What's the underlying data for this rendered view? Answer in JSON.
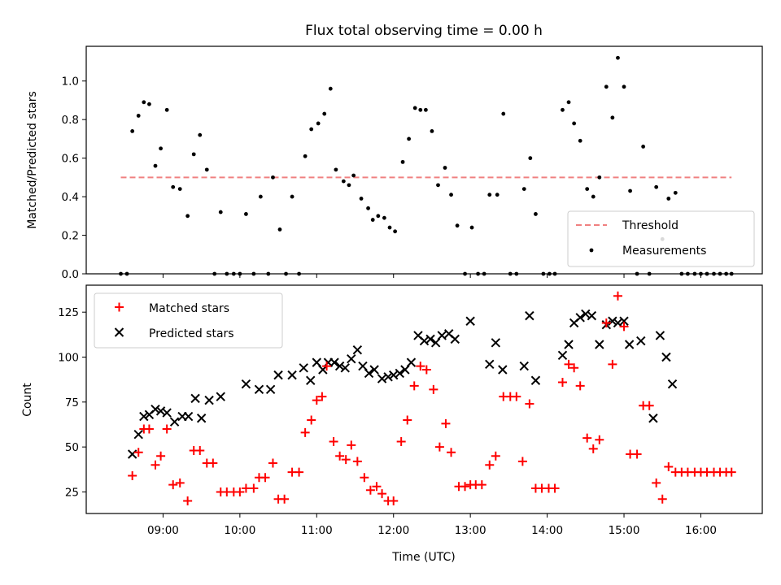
{
  "chart_data": [
    {
      "type": "scatter",
      "title": "Flux total observing time = 0.00 h",
      "xlabel": "",
      "ylabel": "Matched/Predicted stars",
      "xlim_hours": [
        8.0,
        16.8
      ],
      "ylim": [
        0,
        1.18
      ],
      "yticks": [
        0.0,
        0.2,
        0.4,
        0.6,
        0.8,
        1.0
      ],
      "ytick_labels": [
        "0.0",
        "0.2",
        "0.4",
        "0.6",
        "0.8",
        "1.0"
      ],
      "legend_position": "lower-right",
      "threshold": {
        "name": "Threshold",
        "value": 0.5,
        "x_range": [
          8.45,
          16.4
        ],
        "color": "#f08080",
        "style": "dashed"
      },
      "series": [
        {
          "name": "Measurements",
          "color": "#000000",
          "marker": "dot",
          "points": [
            [
              8.45,
              0.0
            ],
            [
              8.53,
              0.0
            ],
            [
              8.6,
              0.74
            ],
            [
              8.68,
              0.82
            ],
            [
              8.75,
              0.89
            ],
            [
              8.82,
              0.88
            ],
            [
              8.9,
              0.56
            ],
            [
              8.97,
              0.65
            ],
            [
              9.05,
              0.85
            ],
            [
              9.13,
              0.45
            ],
            [
              9.22,
              0.44
            ],
            [
              9.32,
              0.3
            ],
            [
              9.4,
              0.62
            ],
            [
              9.48,
              0.72
            ],
            [
              9.57,
              0.54
            ],
            [
              9.67,
              0.0
            ],
            [
              9.75,
              0.32
            ],
            [
              9.83,
              0.0
            ],
            [
              9.92,
              0.0
            ],
            [
              10.0,
              0.0
            ],
            [
              10.08,
              0.31
            ],
            [
              10.18,
              0.0
            ],
            [
              10.27,
              0.4
            ],
            [
              10.37,
              0.0
            ],
            [
              10.43,
              0.5
            ],
            [
              10.52,
              0.23
            ],
            [
              10.6,
              0.0
            ],
            [
              10.68,
              0.4
            ],
            [
              10.77,
              0.0
            ],
            [
              10.85,
              0.61
            ],
            [
              10.93,
              0.75
            ],
            [
              11.02,
              0.78
            ],
            [
              11.1,
              0.83
            ],
            [
              11.18,
              0.96
            ],
            [
              11.25,
              0.54
            ],
            [
              11.35,
              0.48
            ],
            [
              11.42,
              0.46
            ],
            [
              11.48,
              0.51
            ],
            [
              11.58,
              0.39
            ],
            [
              11.67,
              0.34
            ],
            [
              11.73,
              0.28
            ],
            [
              11.8,
              0.3
            ],
            [
              11.88,
              0.29
            ],
            [
              11.95,
              0.24
            ],
            [
              12.02,
              0.22
            ],
            [
              12.12,
              0.58
            ],
            [
              12.2,
              0.7
            ],
            [
              12.28,
              0.86
            ],
            [
              12.35,
              0.85
            ],
            [
              12.42,
              0.85
            ],
            [
              12.5,
              0.74
            ],
            [
              12.58,
              0.46
            ],
            [
              12.67,
              0.55
            ],
            [
              12.75,
              0.41
            ],
            [
              12.83,
              0.25
            ],
            [
              12.93,
              0.0
            ],
            [
              13.02,
              0.24
            ],
            [
              13.1,
              0.0
            ],
            [
              13.18,
              0.0
            ],
            [
              13.25,
              0.41
            ],
            [
              13.35,
              0.41
            ],
            [
              13.43,
              0.83
            ],
            [
              13.52,
              0.0
            ],
            [
              13.6,
              0.0
            ],
            [
              13.7,
              0.44
            ],
            [
              13.78,
              0.6
            ],
            [
              13.85,
              0.31
            ],
            [
              13.95,
              0.0
            ],
            [
              14.03,
              0.0
            ],
            [
              14.1,
              0.0
            ],
            [
              14.2,
              0.85
            ],
            [
              14.28,
              0.89
            ],
            [
              14.35,
              0.78
            ],
            [
              14.43,
              0.69
            ],
            [
              14.52,
              0.44
            ],
            [
              14.6,
              0.4
            ],
            [
              14.68,
              0.5
            ],
            [
              14.77,
              0.97
            ],
            [
              14.85,
              0.81
            ],
            [
              14.92,
              1.12
            ],
            [
              15.0,
              0.97
            ],
            [
              15.08,
              0.43
            ],
            [
              15.17,
              0.0
            ],
            [
              15.25,
              0.66
            ],
            [
              15.33,
              0.0
            ],
            [
              15.42,
              0.45
            ],
            [
              15.5,
              0.18
            ],
            [
              15.58,
              0.39
            ],
            [
              15.67,
              0.42
            ],
            [
              15.75,
              0.0
            ],
            [
              15.83,
              0.0
            ],
            [
              15.92,
              0.0
            ],
            [
              16.0,
              0.0
            ],
            [
              16.08,
              0.0
            ],
            [
              16.17,
              0.0
            ],
            [
              16.25,
              0.0
            ],
            [
              16.33,
              0.0
            ],
            [
              16.4,
              0.0
            ]
          ]
        }
      ]
    },
    {
      "type": "scatter",
      "title": "",
      "xlabel": "Time (UTC)",
      "ylabel": "Count",
      "xlim_hours": [
        8.0,
        16.8
      ],
      "ylim": [
        13,
        140
      ],
      "yticks": [
        25,
        50,
        75,
        100,
        125
      ],
      "ytick_labels": [
        "25",
        "50",
        "75",
        "100",
        "125"
      ],
      "xticks": [
        9,
        10,
        11,
        12,
        13,
        14,
        15,
        16
      ],
      "xtick_labels": [
        "09:00",
        "10:00",
        "11:00",
        "12:00",
        "13:00",
        "14:00",
        "15:00",
        "16:00"
      ],
      "legend_position": "upper-left",
      "series": [
        {
          "name": "Matched stars",
          "color": "#ff0000",
          "marker": "plus",
          "points": [
            [
              8.6,
              34
            ],
            [
              8.68,
              47
            ],
            [
              8.75,
              60
            ],
            [
              8.82,
              60
            ],
            [
              8.9,
              40
            ],
            [
              8.97,
              45
            ],
            [
              9.05,
              60
            ],
            [
              9.13,
              29
            ],
            [
              9.22,
              30
            ],
            [
              9.32,
              20
            ],
            [
              9.4,
              48
            ],
            [
              9.48,
              48
            ],
            [
              9.57,
              41
            ],
            [
              9.65,
              41
            ],
            [
              9.75,
              25
            ],
            [
              9.83,
              25
            ],
            [
              9.92,
              25
            ],
            [
              10.0,
              25
            ],
            [
              10.08,
              27
            ],
            [
              10.18,
              27
            ],
            [
              10.25,
              33
            ],
            [
              10.33,
              33
            ],
            [
              10.43,
              41
            ],
            [
              10.5,
              21
            ],
            [
              10.58,
              21
            ],
            [
              10.68,
              36
            ],
            [
              10.77,
              36
            ],
            [
              10.85,
              58
            ],
            [
              10.93,
              65
            ],
            [
              11.0,
              76
            ],
            [
              11.07,
              78
            ],
            [
              11.13,
              95
            ],
            [
              11.22,
              53
            ],
            [
              11.3,
              45
            ],
            [
              11.38,
              43
            ],
            [
              11.45,
              51
            ],
            [
              11.53,
              42
            ],
            [
              11.62,
              33
            ],
            [
              11.7,
              26
            ],
            [
              11.78,
              28
            ],
            [
              11.85,
              24
            ],
            [
              11.93,
              20
            ],
            [
              12.0,
              20
            ],
            [
              12.1,
              53
            ],
            [
              12.18,
              65
            ],
            [
              12.27,
              84
            ],
            [
              12.35,
              95
            ],
            [
              12.43,
              93
            ],
            [
              12.52,
              82
            ],
            [
              12.6,
              50
            ],
            [
              12.68,
              63
            ],
            [
              12.75,
              47
            ],
            [
              12.85,
              28
            ],
            [
              12.93,
              28
            ],
            [
              13.0,
              29
            ],
            [
              13.07,
              29
            ],
            [
              13.15,
              29
            ],
            [
              13.25,
              40
            ],
            [
              13.33,
              45
            ],
            [
              13.43,
              78
            ],
            [
              13.52,
              78
            ],
            [
              13.6,
              78
            ],
            [
              13.68,
              42
            ],
            [
              13.77,
              74
            ],
            [
              13.85,
              27
            ],
            [
              13.93,
              27
            ],
            [
              14.02,
              27
            ],
            [
              14.1,
              27
            ],
            [
              14.2,
              86
            ],
            [
              14.28,
              96
            ],
            [
              14.35,
              94
            ],
            [
              14.43,
              84
            ],
            [
              14.52,
              55
            ],
            [
              14.6,
              49
            ],
            [
              14.68,
              54
            ],
            [
              14.77,
              119
            ],
            [
              14.85,
              96
            ],
            [
              14.92,
              134
            ],
            [
              15.0,
              117
            ],
            [
              15.08,
              46
            ],
            [
              15.17,
              46
            ],
            [
              15.25,
              73
            ],
            [
              15.33,
              73
            ],
            [
              15.42,
              30
            ],
            [
              15.5,
              21
            ],
            [
              15.58,
              39
            ],
            [
              15.67,
              36
            ],
            [
              15.75,
              36
            ],
            [
              15.83,
              36
            ],
            [
              15.92,
              36
            ],
            [
              16.0,
              36
            ],
            [
              16.08,
              36
            ],
            [
              16.17,
              36
            ],
            [
              16.25,
              36
            ],
            [
              16.33,
              36
            ],
            [
              16.4,
              36
            ]
          ]
        },
        {
          "name": "Predicted stars",
          "color": "#000000",
          "marker": "x",
          "points": [
            [
              8.6,
              46
            ],
            [
              8.68,
              57
            ],
            [
              8.75,
              67
            ],
            [
              8.82,
              68
            ],
            [
              8.9,
              71
            ],
            [
              8.97,
              70
            ],
            [
              9.05,
              69
            ],
            [
              9.15,
              64
            ],
            [
              9.25,
              67
            ],
            [
              9.33,
              67
            ],
            [
              9.42,
              77
            ],
            [
              9.5,
              66
            ],
            [
              9.6,
              76
            ],
            [
              9.75,
              78
            ],
            [
              10.08,
              85
            ],
            [
              10.25,
              82
            ],
            [
              10.4,
              82
            ],
            [
              10.5,
              90
            ],
            [
              10.68,
              90
            ],
            [
              10.83,
              94
            ],
            [
              10.92,
              87
            ],
            [
              11.0,
              97
            ],
            [
              11.08,
              93
            ],
            [
              11.15,
              97
            ],
            [
              11.23,
              97
            ],
            [
              11.3,
              95
            ],
            [
              11.37,
              94
            ],
            [
              11.45,
              99
            ],
            [
              11.53,
              104
            ],
            [
              11.6,
              95
            ],
            [
              11.68,
              91
            ],
            [
              11.75,
              93
            ],
            [
              11.85,
              88
            ],
            [
              11.93,
              89
            ],
            [
              12.0,
              90
            ],
            [
              12.08,
              91
            ],
            [
              12.15,
              93
            ],
            [
              12.23,
              97
            ],
            [
              12.32,
              112
            ],
            [
              12.4,
              109
            ],
            [
              12.48,
              110
            ],
            [
              12.55,
              108
            ],
            [
              12.63,
              112
            ],
            [
              12.72,
              113
            ],
            [
              12.8,
              110
            ],
            [
              13.0,
              120
            ],
            [
              13.25,
              96
            ],
            [
              13.33,
              108
            ],
            [
              13.42,
              93
            ],
            [
              13.7,
              95
            ],
            [
              13.77,
              123
            ],
            [
              13.85,
              87
            ],
            [
              14.2,
              101
            ],
            [
              14.28,
              107
            ],
            [
              14.35,
              119
            ],
            [
              14.43,
              122
            ],
            [
              14.5,
              124
            ],
            [
              14.58,
              123
            ],
            [
              14.68,
              107
            ],
            [
              14.77,
              118
            ],
            [
              14.85,
              120
            ],
            [
              14.92,
              119
            ],
            [
              15.0,
              120
            ],
            [
              15.07,
              107
            ],
            [
              15.22,
              109
            ],
            [
              15.38,
              66
            ],
            [
              15.47,
              112
            ],
            [
              15.55,
              100
            ],
            [
              15.63,
              85
            ]
          ]
        }
      ]
    }
  ]
}
